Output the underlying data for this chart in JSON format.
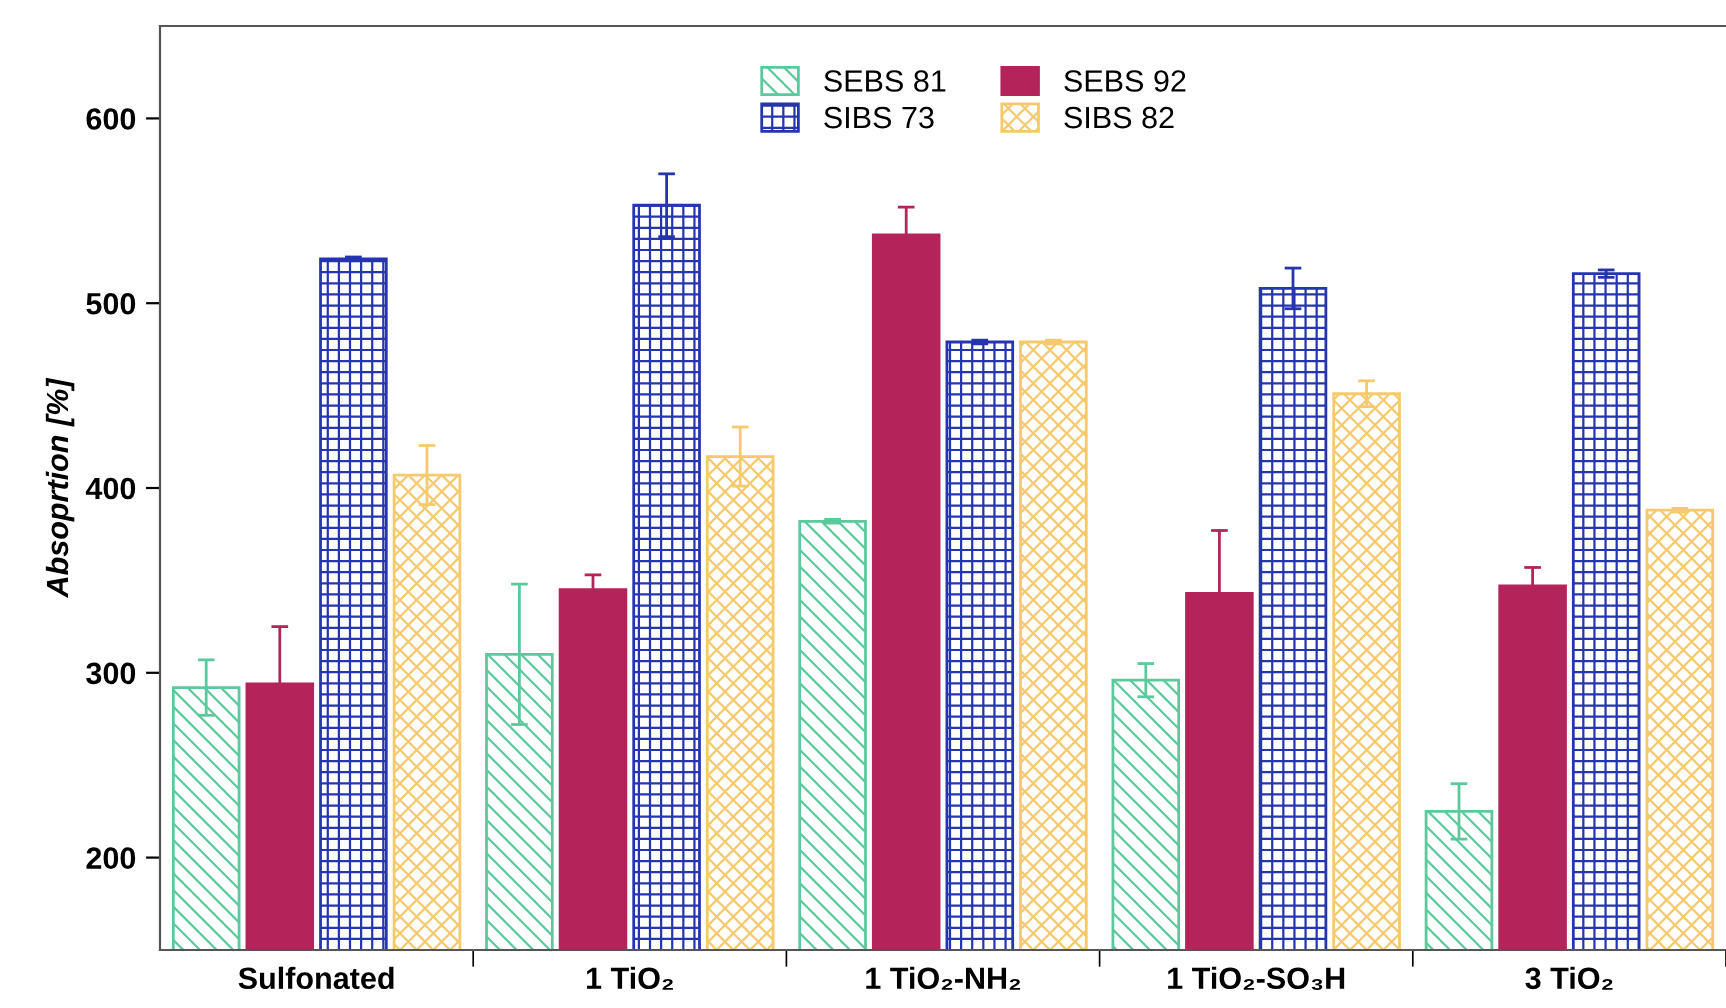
{
  "chart_data": {
    "type": "bar",
    "ylabel": "Absoprtion [%]",
    "categories": [
      "Sulfonated",
      "1 TiO₂",
      "1 TiO₂-NH₂",
      "1 TiO₂-SO₃H",
      "3 TiO₂"
    ],
    "series": [
      {
        "name": "SEBS 81",
        "color": "#5cc99c",
        "values": [
          292,
          310,
          382,
          296,
          225
        ],
        "errors": [
          15,
          38,
          1,
          9,
          15
        ]
      },
      {
        "name": "SEBS 92",
        "color": "#b3245a",
        "values": [
          294,
          345,
          537,
          343,
          347
        ],
        "errors": [
          31,
          8,
          15,
          34,
          10
        ]
      },
      {
        "name": "SIBS 73",
        "color": "#2535b0",
        "values": [
          524,
          553,
          479,
          508,
          516
        ],
        "errors": [
          1,
          17,
          1,
          11,
          2
        ]
      },
      {
        "name": "SIBS 82",
        "color": "#f6c96c",
        "values": [
          407,
          417,
          479,
          451,
          388
        ],
        "errors": [
          16,
          16,
          1,
          7,
          1
        ]
      }
    ],
    "ylim": [
      150,
      650
    ],
    "yticks": [
      200,
      300,
      400,
      500,
      600
    ],
    "grid": false,
    "legend": "top"
  }
}
